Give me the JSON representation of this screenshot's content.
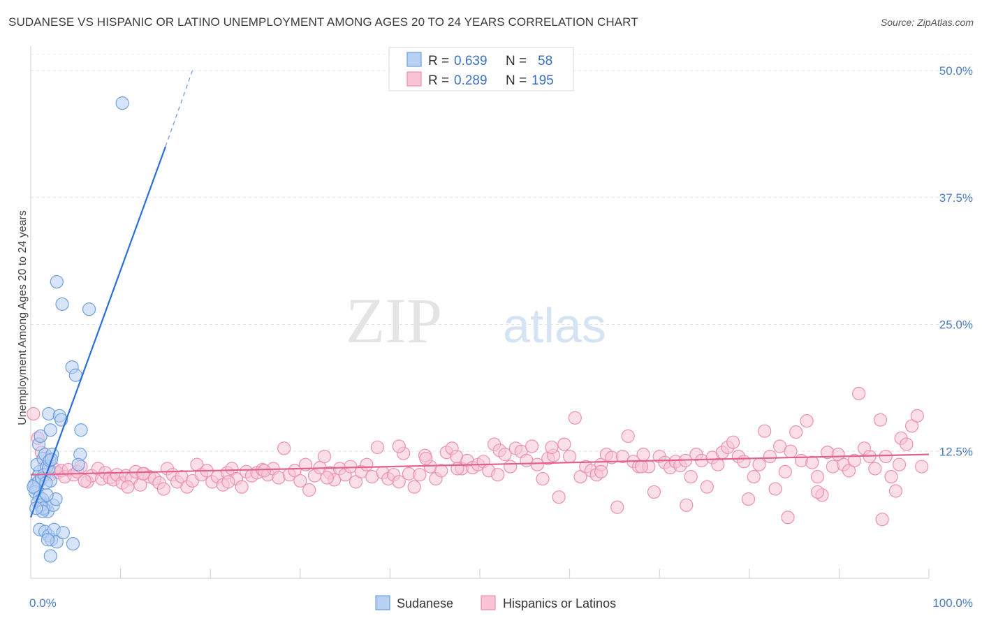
{
  "title": "SUDANESE VS HISPANIC OR LATINO UNEMPLOYMENT AMONG AGES 20 TO 24 YEARS CORRELATION CHART",
  "source": "Source: ZipAtlas.com",
  "watermark": {
    "zip": "ZIP",
    "atlas": "atlas"
  },
  "chart_data": {
    "type": "scatter",
    "title": "SUDANESE VS HISPANIC OR LATINO UNEMPLOYMENT AMONG AGES 20 TO 24 YEARS CORRELATION CHART",
    "xlabel": "",
    "ylabel": "Unemployment Among Ages 20 to 24 years",
    "xlim": [
      0,
      100
    ],
    "ylim": [
      0,
      52
    ],
    "x_tick_labels": [
      "0.0%",
      "100.0%"
    ],
    "y_ticks": [
      12.5,
      25.0,
      37.5,
      50.0
    ],
    "y_tick_labels": [
      "12.5%",
      "25.0%",
      "37.5%",
      "50.0%"
    ],
    "grid": true,
    "legend_position": "top-center",
    "series": [
      {
        "name": "Sudanese",
        "color": "#6fa0e0",
        "fill": "#b8d0f2",
        "line_color": "#2a6fd6",
        "R": "0.639",
        "N": "58",
        "R_label": "R = ",
        "N_label": "N = ",
        "trend": {
          "x0": 0.0,
          "y0": 6.0,
          "x1": 15.0,
          "y1": 42.5,
          "dash_to_x": 18.0,
          "dash_to_y": 50.0
        },
        "points": [
          [
            0.4,
            9.2
          ],
          [
            0.6,
            8.8
          ],
          [
            0.8,
            10.0
          ],
          [
            0.9,
            9.5
          ],
          [
            0.5,
            8.5
          ],
          [
            1.0,
            10.5
          ],
          [
            0.7,
            11.2
          ],
          [
            1.2,
            9.8
          ],
          [
            0.3,
            9.0
          ],
          [
            0.9,
            13.2
          ],
          [
            1.1,
            14.0
          ],
          [
            1.4,
            11.8
          ],
          [
            1.6,
            12.2
          ],
          [
            1.8,
            11.0
          ],
          [
            1.5,
            10.2
          ],
          [
            2.0,
            10.8
          ],
          [
            2.2,
            9.6
          ],
          [
            1.0,
            8.0
          ],
          [
            1.3,
            7.8
          ],
          [
            1.7,
            7.2
          ],
          [
            1.2,
            7.0
          ],
          [
            1.5,
            6.8
          ],
          [
            1.9,
            6.6
          ],
          [
            0.8,
            7.5
          ],
          [
            1.1,
            7.2
          ],
          [
            1.4,
            6.9
          ],
          [
            2.5,
            7.2
          ],
          [
            2.8,
            7.8
          ],
          [
            2.4,
            12.2
          ],
          [
            2.1,
            11.6
          ],
          [
            1.8,
            8.2
          ],
          [
            2.0,
            16.2
          ],
          [
            2.2,
            14.6
          ],
          [
            3.2,
            16.0
          ],
          [
            3.4,
            15.6
          ],
          [
            5.6,
            14.6
          ],
          [
            5.5,
            12.2
          ],
          [
            5.3,
            11.2
          ],
          [
            4.6,
            20.8
          ],
          [
            5.0,
            20.0
          ],
          [
            6.5,
            26.5
          ],
          [
            3.5,
            27.0
          ],
          [
            2.9,
            29.2
          ],
          [
            10.2,
            46.8
          ],
          [
            1.0,
            4.8
          ],
          [
            1.6,
            4.6
          ],
          [
            2.0,
            4.2
          ],
          [
            2.3,
            3.8
          ],
          [
            2.6,
            4.8
          ],
          [
            2.9,
            3.6
          ],
          [
            3.6,
            4.5
          ],
          [
            1.9,
            3.8
          ],
          [
            2.2,
            2.2
          ],
          [
            4.7,
            3.4
          ],
          [
            1.3,
            6.6
          ],
          [
            0.6,
            6.9
          ],
          [
            2.3,
            11.7
          ],
          [
            1.7,
            9.4
          ]
        ]
      },
      {
        "name": "Hispanics or Latinos",
        "color": "#ee8fb0",
        "fill": "#f8c4d6",
        "line_color": "#e0608e",
        "R": "0.289",
        "N": "195",
        "R_label": "R = ",
        "N_label": "N = ",
        "trend": {
          "x0": 0.0,
          "y0": 10.2,
          "x1": 100.0,
          "y1": 12.2
        },
        "points": [
          [
            0.3,
            16.2
          ],
          [
            0.8,
            13.8
          ],
          [
            1.2,
            12.4
          ],
          [
            1.5,
            11.0
          ],
          [
            1.8,
            10.5
          ],
          [
            2.2,
            10.2
          ],
          [
            2.6,
            10.8
          ],
          [
            3.0,
            10.4
          ],
          [
            3.4,
            10.6
          ],
          [
            3.8,
            10.0
          ],
          [
            4.2,
            10.7
          ],
          [
            4.8,
            10.2
          ],
          [
            5.2,
            10.5
          ],
          [
            5.6,
            11.0
          ],
          [
            6.3,
            9.5
          ],
          [
            6.8,
            10.1
          ],
          [
            7.5,
            10.8
          ],
          [
            7.9,
            9.8
          ],
          [
            8.3,
            10.4
          ],
          [
            8.8,
            9.9
          ],
          [
            9.2,
            9.7
          ],
          [
            9.6,
            10.2
          ],
          [
            10.2,
            9.4
          ],
          [
            10.6,
            10.1
          ],
          [
            11.2,
            9.8
          ],
          [
            11.7,
            10.5
          ],
          [
            12.2,
            9.2
          ],
          [
            12.6,
            10.3
          ],
          [
            13.2,
            10.0
          ],
          [
            13.8,
            9.8
          ],
          [
            14.3,
            9.4
          ],
          [
            14.8,
            8.8
          ],
          [
            15.2,
            10.8
          ],
          [
            15.8,
            10.2
          ],
          [
            16.3,
            9.5
          ],
          [
            16.8,
            10.0
          ],
          [
            17.4,
            9.0
          ],
          [
            18.0,
            9.6
          ],
          [
            18.5,
            11.2
          ],
          [
            19.0,
            10.2
          ],
          [
            19.6,
            10.6
          ],
          [
            20.2,
            9.5
          ],
          [
            20.8,
            10.0
          ],
          [
            21.4,
            9.2
          ],
          [
            21.9,
            10.4
          ],
          [
            22.4,
            10.8
          ],
          [
            22.9,
            9.8
          ],
          [
            23.5,
            9.0
          ],
          [
            24.0,
            10.5
          ],
          [
            24.6,
            10.1
          ],
          [
            25.2,
            10.4
          ],
          [
            25.8,
            10.7
          ],
          [
            26.4,
            10.2
          ],
          [
            27.0,
            10.8
          ],
          [
            27.6,
            9.9
          ],
          [
            28.2,
            12.8
          ],
          [
            28.8,
            10.2
          ],
          [
            29.4,
            10.6
          ],
          [
            30.0,
            9.6
          ],
          [
            30.6,
            11.2
          ],
          [
            31.0,
            8.7
          ],
          [
            31.6,
            10.1
          ],
          [
            32.2,
            10.9
          ],
          [
            32.7,
            12.0
          ],
          [
            33.3,
            10.4
          ],
          [
            33.8,
            9.7
          ],
          [
            34.4,
            10.8
          ],
          [
            35.0,
            10.2
          ],
          [
            35.6,
            11.0
          ],
          [
            36.2,
            9.5
          ],
          [
            36.8,
            10.5
          ],
          [
            37.4,
            11.2
          ],
          [
            38.0,
            10.0
          ],
          [
            38.6,
            12.9
          ],
          [
            39.2,
            10.4
          ],
          [
            39.8,
            9.8
          ],
          [
            40.4,
            10.2
          ],
          [
            41.0,
            9.5
          ],
          [
            41.5,
            12.3
          ],
          [
            42.1,
            10.3
          ],
          [
            42.7,
            9.0
          ],
          [
            43.3,
            10.2
          ],
          [
            43.9,
            12.1
          ],
          [
            44.5,
            11.0
          ],
          [
            45.1,
            9.8
          ],
          [
            45.7,
            10.6
          ],
          [
            46.3,
            12.4
          ],
          [
            46.9,
            12.8
          ],
          [
            47.4,
            12.0
          ],
          [
            48.0,
            10.8
          ],
          [
            48.6,
            11.6
          ],
          [
            49.2,
            10.9
          ],
          [
            49.8,
            11.2
          ],
          [
            50.4,
            11.5
          ],
          [
            51.0,
            10.6
          ],
          [
            51.6,
            13.2
          ],
          [
            52.2,
            12.6
          ],
          [
            52.8,
            12.2
          ],
          [
            53.4,
            11.0
          ],
          [
            54.0,
            12.8
          ],
          [
            54.6,
            12.5
          ],
          [
            55.2,
            11.6
          ],
          [
            55.8,
            13.0
          ],
          [
            56.4,
            11.2
          ],
          [
            57.0,
            9.8
          ],
          [
            57.6,
            11.8
          ],
          [
            58.2,
            12.1
          ],
          [
            58.8,
            8.0
          ],
          [
            59.4,
            13.2
          ],
          [
            60.0,
            12.0
          ],
          [
            60.6,
            15.8
          ],
          [
            61.2,
            10.0
          ],
          [
            61.8,
            11.0
          ],
          [
            62.4,
            10.6
          ],
          [
            63.0,
            10.2
          ],
          [
            63.5,
            11.2
          ],
          [
            64.1,
            12.2
          ],
          [
            64.7,
            11.9
          ],
          [
            65.3,
            7.0
          ],
          [
            65.9,
            12.0
          ],
          [
            66.5,
            14.0
          ],
          [
            67.1,
            11.5
          ],
          [
            67.7,
            11.0
          ],
          [
            68.2,
            12.2
          ],
          [
            68.8,
            11.0
          ],
          [
            69.4,
            8.5
          ],
          [
            70.0,
            12.0
          ],
          [
            70.6,
            11.4
          ],
          [
            71.2,
            10.9
          ],
          [
            71.8,
            11.5
          ],
          [
            72.3,
            11.1
          ],
          [
            72.9,
            11.6
          ],
          [
            73.5,
            10.0
          ],
          [
            74.1,
            12.2
          ],
          [
            74.7,
            11.6
          ],
          [
            75.3,
            9.0
          ],
          [
            75.9,
            11.9
          ],
          [
            76.5,
            11.2
          ],
          [
            77.0,
            12.4
          ],
          [
            77.6,
            12.9
          ],
          [
            78.2,
            13.4
          ],
          [
            78.8,
            12.0
          ],
          [
            79.4,
            11.5
          ],
          [
            79.9,
            7.8
          ],
          [
            80.5,
            10.0
          ],
          [
            81.1,
            11.2
          ],
          [
            81.7,
            14.5
          ],
          [
            82.3,
            12.0
          ],
          [
            82.9,
            8.8
          ],
          [
            83.4,
            13.0
          ],
          [
            84.0,
            10.5
          ],
          [
            84.6,
            12.5
          ],
          [
            85.2,
            14.4
          ],
          [
            85.8,
            11.6
          ],
          [
            86.4,
            15.5
          ],
          [
            87.0,
            11.4
          ],
          [
            87.6,
            10.0
          ],
          [
            88.1,
            8.2
          ],
          [
            88.7,
            12.4
          ],
          [
            89.3,
            11.0
          ],
          [
            89.9,
            12.2
          ],
          [
            90.5,
            11.2
          ],
          [
            91.1,
            10.6
          ],
          [
            91.7,
            11.6
          ],
          [
            92.2,
            18.2
          ],
          [
            92.8,
            12.8
          ],
          [
            93.4,
            12.0
          ],
          [
            94.0,
            10.8
          ],
          [
            94.6,
            15.6
          ],
          [
            95.2,
            12.0
          ],
          [
            95.8,
            10.0
          ],
          [
            96.3,
            8.6
          ],
          [
            96.9,
            13.8
          ],
          [
            97.5,
            13.2
          ],
          [
            98.1,
            15.0
          ],
          [
            98.7,
            16.0
          ],
          [
            99.2,
            11.0
          ],
          [
            84.3,
            6.0
          ],
          [
            94.8,
            5.8
          ],
          [
            73.0,
            7.2
          ],
          [
            87.6,
            8.5
          ],
          [
            96.7,
            11.2
          ],
          [
            41.0,
            13.0
          ],
          [
            22.0,
            9.5
          ],
          [
            10.8,
            9.0
          ],
          [
            6.0,
            9.6
          ],
          [
            12.5,
            10.3
          ],
          [
            26.0,
            10.6
          ],
          [
            33.0,
            9.9
          ],
          [
            44.0,
            11.8
          ],
          [
            47.5,
            10.8
          ],
          [
            52.0,
            10.2
          ],
          [
            58.0,
            12.9
          ],
          [
            63.5,
            10.5
          ],
          [
            68.0,
            11.0
          ]
        ]
      }
    ]
  }
}
